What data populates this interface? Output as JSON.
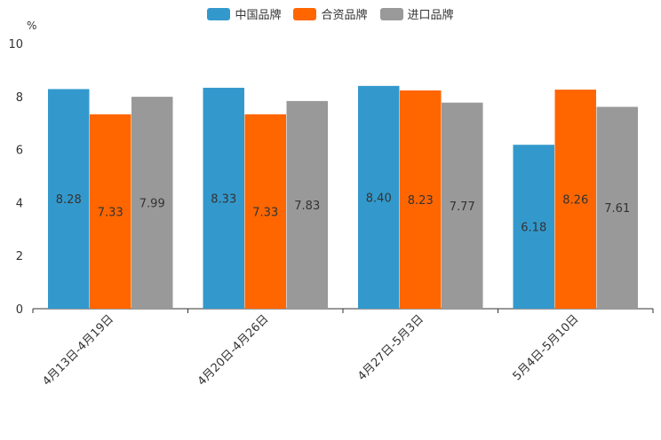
{
  "chart_data": {
    "type": "bar",
    "unit": "%",
    "categories": [
      "4月13日-4月19日",
      "4月20日-4月26日",
      "4月27日-5月3日",
      "5月4日-5月10日"
    ],
    "series": [
      {
        "name": "中国品牌",
        "color": "#3399cc",
        "values": [
          8.28,
          8.33,
          8.4,
          6.18
        ],
        "labels": [
          "8.28",
          "8.33",
          "8.40",
          "6.18"
        ]
      },
      {
        "name": "合资品牌",
        "color": "#ff6600",
        "values": [
          7.33,
          7.33,
          8.23,
          8.26
        ],
        "labels": [
          "7.33",
          "7.33",
          "8.23",
          "8.26"
        ]
      },
      {
        "name": "进口品牌",
        "color": "#999999",
        "values": [
          7.99,
          7.83,
          7.77,
          7.61
        ],
        "labels": [
          "7.99",
          "7.83",
          "7.77",
          "7.61"
        ]
      }
    ],
    "yticks": [
      "0",
      "2",
      "4",
      "6",
      "8",
      "10"
    ],
    "ylim": [
      0,
      10
    ],
    "legend_position": "top-center"
  }
}
